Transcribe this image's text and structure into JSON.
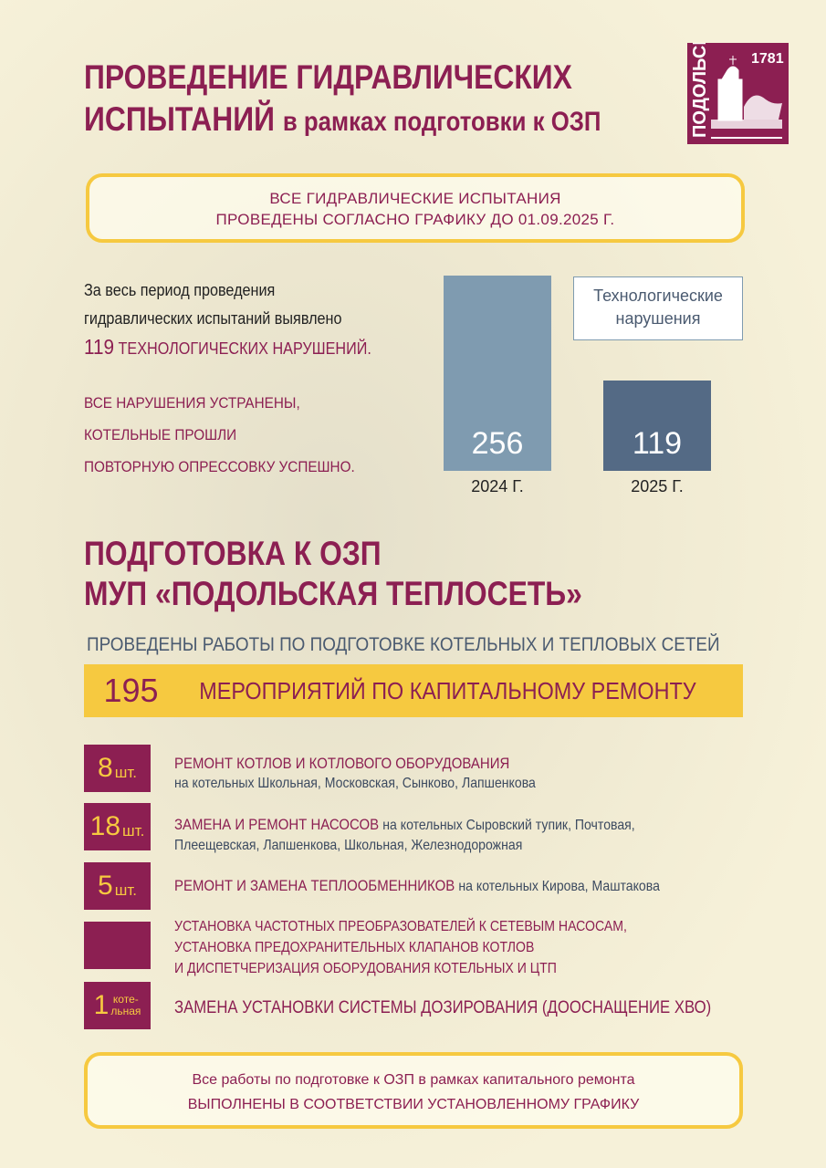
{
  "header": {
    "title_line1": "ПРОВЕДЕНИЕ ГИДРАВЛИЧЕСКИХ",
    "title_line2_bold": "ИСПЫТАНИЙ",
    "title_line2_rest": "в рамках подготовки к ОЗП"
  },
  "logo": {
    "city": "ПОДОЛЬСК",
    "year": "1781"
  },
  "notice": {
    "line1": "ВСЕ ГИДРАВЛИЧЕСКИЕ ИСПЫТАНИЯ",
    "line2": "ПРОВЕДЕНЫ СОГЛАСНО ГРАФИКУ ДО 01.09.2025 Г."
  },
  "intro": {
    "line1": "За весь период проведения",
    "line2": "гидравлических испытаний выявлено",
    "count": "119",
    "count_text": "ТЕХНОЛОГИЧЕСКИХ НАРУШЕНИЙ."
  },
  "fixed": {
    "line1": "ВСЕ НАРУШЕНИЯ УСТРАНЕНЫ,",
    "line2": "КОТЕЛЬНЫЕ ПРОШЛИ",
    "line3": "ПОВТОРНУЮ ОПРЕССОВКУ УСПЕШНО."
  },
  "chart_data": {
    "type": "bar",
    "categories": [
      "2024 Г.",
      "2025 Г."
    ],
    "values": [
      256,
      119
    ],
    "value_labels": [
      "256",
      "119"
    ],
    "legend": "Технологические нарушения",
    "colors": [
      "#7f9bb0",
      "#546a85"
    ],
    "ylim": [
      0,
      256
    ]
  },
  "section2": {
    "title_line1": "ПОДГОТОВКА К ОЗП",
    "title_line2": "МУП «ПОДОЛЬСКАЯ ТЕПЛОСЕТЬ»",
    "subtitle": "ПРОВЕДЕНЫ РАБОТЫ ПО ПОДГОТОВКЕ КОТЕЛЬНЫХ И ТЕПЛОВЫХ СЕТЕЙ",
    "banner_number": "195",
    "banner_text": "МЕРОПРИЯТИЙ ПО КАПИТАЛЬНОМУ РЕМОНТУ"
  },
  "items": [
    {
      "num": "8",
      "unit": "шт.",
      "title": "РЕМОНТ КОТЛОВ И КОТЛОВОГО ОБОРУДОВАНИЯ",
      "detail": "на котельных Школьная, Московская, Сынково, Лапшенкова"
    },
    {
      "num": "18",
      "unit": "шт.",
      "title": "ЗАМЕНА И РЕМОНТ НАСОСОВ",
      "detail": "на котельных Сыровский тупик, Почтовая,",
      "detail2": "Плеещевская, Лапшенкова, Школьная, Железнодорожная"
    },
    {
      "num": "5",
      "unit": "шт.",
      "title": "РЕМОНТ И ЗАМЕНА ТЕПЛООБМЕННИКОВ",
      "detail": "на котельных Кирова, Маштакова"
    },
    {
      "line1": "УСТАНОВКА ЧАСТОТНЫХ ПРЕОБРАЗОВАТЕЛЕЙ К СЕТЕВЫМ НАСОСАМ,",
      "line2": "УСТАНОВКА ПРЕДОХРАНИТЕЛЬНЫХ КЛАПАНОВ КОТЛОВ",
      "line3": "И ДИСПЕТЧЕРИЗАЦИЯ ОБОРУДОВАНИЯ КОТЕЛЬНЫХ И ЦТП"
    },
    {
      "num": "1",
      "unit1": "коте-",
      "unit2": "льная",
      "title": "ЗАМЕНА УСТАНОВКИ СИСТЕМЫ ДОЗИРОВАНИЯ (ДООСНАЩЕНИЕ ХВО)"
    }
  ],
  "footer": {
    "line1": "Все работы по подготовке к ОЗП в рамках капитального ремонта",
    "line2": "ВЫПОЛНЕНЫ В СООТВЕТСТВИИ УСТАНОВЛЕННОМУ ГРАФИКУ"
  }
}
